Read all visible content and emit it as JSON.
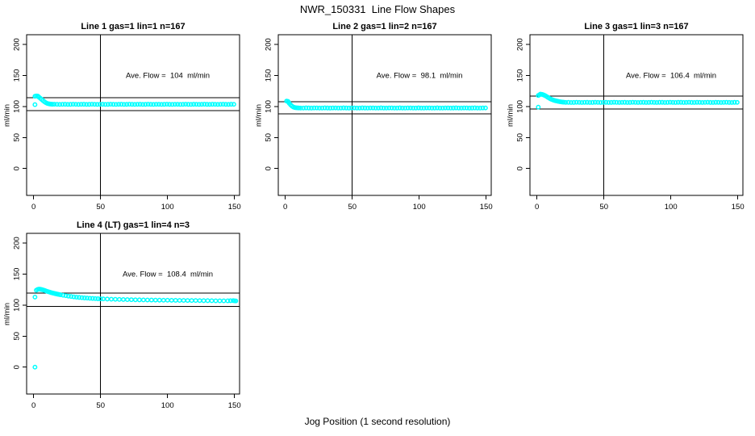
{
  "figure": {
    "title": "NWR_150331  Line Flow Shapes",
    "xlabel": "Jog Position (1 second resolution)",
    "background": "#ffffff",
    "axis_color": "#000000"
  },
  "chart_data": [
    {
      "type": "scatter",
      "title": "Line 1 gas=1 lin=1 n=167",
      "annotation": "Ave. Flow =  104  ml/min",
      "ave_flow_ml_min": 104,
      "ylabel": "ml/min",
      "x_ticks": [
        0,
        50,
        100,
        150
      ],
      "y_ticks": [
        0,
        50,
        100,
        150,
        200
      ],
      "xlim": [
        -5,
        153
      ],
      "ylim": [
        -43,
        216
      ],
      "ref_hlines": [
        114.4,
        93.6
      ],
      "ref_vline": 50,
      "marker_color": "#00ffff",
      "points": [
        [
          1,
          103
        ],
        [
          1,
          116.5
        ],
        [
          2,
          117
        ],
        [
          3,
          116.8
        ],
        [
          3.5,
          116
        ],
        [
          4,
          115
        ],
        [
          5,
          113.2
        ],
        [
          6,
          111.4
        ],
        [
          7,
          109.6
        ],
        [
          8,
          107.8
        ],
        [
          9,
          106.3
        ],
        [
          10,
          105.2
        ],
        [
          11,
          104.5
        ],
        [
          12,
          104.1
        ],
        [
          13,
          103.8
        ],
        [
          14,
          103.6
        ]
      ],
      "band": {
        "x_from": 15.5,
        "x_to": 151,
        "step": 2,
        "y": 103.5,
        "wobble": 0.15
      }
    },
    {
      "type": "scatter",
      "title": "Line 2 gas=1 lin=2 n=167",
      "annotation": "Ave. Flow =  98.1  ml/min",
      "ave_flow_ml_min": 98.1,
      "ylabel": "ml/min",
      "x_ticks": [
        0,
        50,
        100,
        150
      ],
      "y_ticks": [
        0,
        50,
        100,
        150,
        200
      ],
      "xlim": [
        -5,
        153
      ],
      "ylim": [
        -43,
        216
      ],
      "ref_hlines": [
        107.9,
        88.3
      ],
      "ref_vline": 50,
      "marker_color": "#00ffff",
      "points": [
        [
          1,
          108.8
        ],
        [
          2,
          108.3
        ],
        [
          2.5,
          106.8
        ],
        [
          3,
          105
        ],
        [
          4,
          102.6
        ],
        [
          5,
          100.6
        ],
        [
          6,
          99.2
        ],
        [
          7,
          98.4
        ],
        [
          8,
          98
        ],
        [
          9,
          97.8
        ],
        [
          10,
          97.7
        ]
      ],
      "band": {
        "x_from": 11.5,
        "x_to": 151,
        "step": 2,
        "y": 97.6,
        "wobble": 0.15
      }
    },
    {
      "type": "scatter",
      "title": "Line 3 gas=1 lin=3 n=167",
      "annotation": "Ave. Flow =  106.4  ml/min",
      "ave_flow_ml_min": 106.4,
      "ylabel": "ml/min",
      "x_ticks": [
        0,
        50,
        100,
        150
      ],
      "y_ticks": [
        0,
        50,
        100,
        150,
        200
      ],
      "xlim": [
        -5,
        153
      ],
      "ylim": [
        -43,
        216
      ],
      "ref_hlines": [
        117.0,
        95.8
      ],
      "ref_vline": 50,
      "marker_color": "#00ffff",
      "points": [
        [
          1,
          99
        ],
        [
          1,
          117.8
        ],
        [
          2,
          119
        ],
        [
          2.5,
          120
        ],
        [
          3,
          119.8
        ],
        [
          4,
          119.4
        ],
        [
          5,
          118.6
        ],
        [
          6,
          117.6
        ],
        [
          7,
          116.4
        ],
        [
          8,
          115
        ],
        [
          9,
          113.6
        ],
        [
          10,
          112.4
        ],
        [
          11,
          111.4
        ],
        [
          12,
          110.5
        ],
        [
          13,
          109.8
        ],
        [
          14,
          109.2
        ],
        [
          15,
          108.7
        ],
        [
          16,
          108.2
        ],
        [
          17,
          107.8
        ],
        [
          18,
          107.4
        ],
        [
          19,
          107.1
        ],
        [
          20,
          106.9
        ]
      ],
      "band": {
        "x_from": 21.5,
        "x_to": 151,
        "step": 2,
        "y": 106.6,
        "wobble": 0.15
      }
    },
    {
      "type": "scatter",
      "title": "Line 4 (LT) gas=1 lin=4 n=3",
      "annotation": "Ave. Flow =  108.4  ml/min",
      "ave_flow_ml_min": 108.4,
      "ylabel": "ml/min",
      "x_ticks": [
        0,
        50,
        100,
        150
      ],
      "y_ticks": [
        0,
        50,
        100,
        150,
        200
      ],
      "xlim": [
        -5,
        153
      ],
      "ylim": [
        -43,
        216
      ],
      "ref_hlines": [
        119.2,
        97.6
      ],
      "ref_vline": 50,
      "marker_color": "#00ffff",
      "points": [
        [
          1,
          0
        ],
        [
          1,
          113
        ],
        [
          2,
          124
        ],
        [
          3,
          125.3
        ],
        [
          4,
          125.8
        ],
        [
          5,
          125.6
        ],
        [
          6,
          125.1
        ],
        [
          7,
          124.5
        ],
        [
          8,
          123.8
        ],
        [
          9,
          123.1
        ],
        [
          10,
          122.3
        ],
        [
          11,
          121.6
        ],
        [
          12,
          120.9
        ],
        [
          13,
          120.2
        ],
        [
          14,
          119.6
        ],
        [
          15,
          119.1
        ],
        [
          16,
          118.6
        ],
        [
          17,
          118.1
        ],
        [
          18,
          117.6
        ],
        [
          19,
          117.2
        ],
        [
          20,
          116.7
        ],
        [
          22,
          115.9
        ],
        [
          24,
          115.2
        ],
        [
          26,
          114.5
        ],
        [
          28,
          113.9
        ],
        [
          30,
          113.3
        ],
        [
          32,
          112.8
        ],
        [
          34,
          112.4
        ],
        [
          36,
          112
        ],
        [
          38,
          111.6
        ],
        [
          40,
          111.3
        ],
        [
          42,
          111
        ],
        [
          44,
          110.8
        ],
        [
          46,
          110.5
        ],
        [
          48,
          110.3
        ],
        [
          50,
          110.1
        ],
        [
          52,
          110
        ],
        [
          55,
          109.8
        ],
        [
          58,
          109.6
        ],
        [
          61,
          109.4
        ],
        [
          64,
          109.2
        ],
        [
          67,
          109.1
        ],
        [
          70,
          108.9
        ],
        [
          73,
          108.8
        ],
        [
          76,
          108.6
        ],
        [
          79,
          108.5
        ],
        [
          82,
          108.4
        ],
        [
          85,
          108.3
        ],
        [
          88,
          108.2
        ],
        [
          91,
          108.1
        ],
        [
          94,
          108
        ],
        [
          97,
          107.9
        ],
        [
          100,
          107.9
        ],
        [
          103,
          107.8
        ],
        [
          106,
          107.7
        ],
        [
          109,
          107.6
        ],
        [
          112,
          107.6
        ],
        [
          115,
          107.5
        ],
        [
          118,
          107.4
        ],
        [
          121,
          107.4
        ],
        [
          124,
          107.3
        ],
        [
          127,
          107.2
        ],
        [
          130,
          107.2
        ],
        [
          133,
          107.1
        ],
        [
          136,
          107
        ],
        [
          139,
          107
        ],
        [
          142,
          106.9
        ],
        [
          145,
          106.9
        ],
        [
          147,
          107.1
        ],
        [
          149,
          107.3
        ],
        [
          150,
          107
        ],
        [
          151,
          106.8
        ]
      ],
      "band": null
    }
  ]
}
